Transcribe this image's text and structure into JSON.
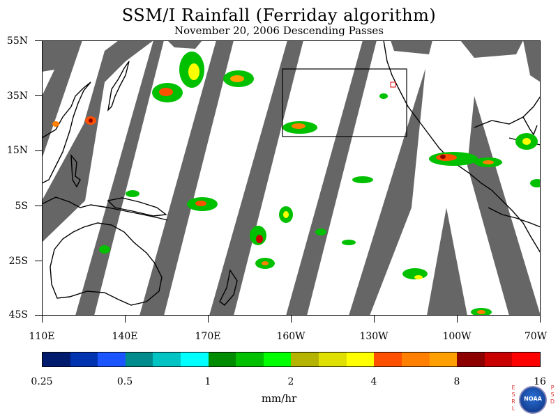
{
  "title": "SSM/I Rainfall (Ferriday algorithm)",
  "subtitle": "November 20, 2006  Descending Passes",
  "lat_labels": [
    "55N",
    "35N",
    "15N",
    "5S",
    "25S",
    "45S"
  ],
  "lon_labels": [
    "110E",
    "140E",
    "170E",
    "160W",
    "130W",
    "100W",
    "70W"
  ],
  "colorbar": {
    "colors": [
      "#001a6e",
      "#0033b0",
      "#1a55ff",
      "#008c8c",
      "#00c4c4",
      "#00ffff",
      "#008c00",
      "#00c000",
      "#00ff00",
      "#b4b400",
      "#e0e000",
      "#ffff00",
      "#ff5000",
      "#ff8000",
      "#ffa000",
      "#8c0000",
      "#c80000",
      "#ff0000"
    ],
    "labels": [
      "0.25",
      "0.5",
      "1",
      "2",
      "4",
      "8",
      "16"
    ]
  },
  "units": "mm/hr",
  "logo": {
    "left_text": "ESRL",
    "right_text": "PSD",
    "center_text": "NOAA"
  }
}
